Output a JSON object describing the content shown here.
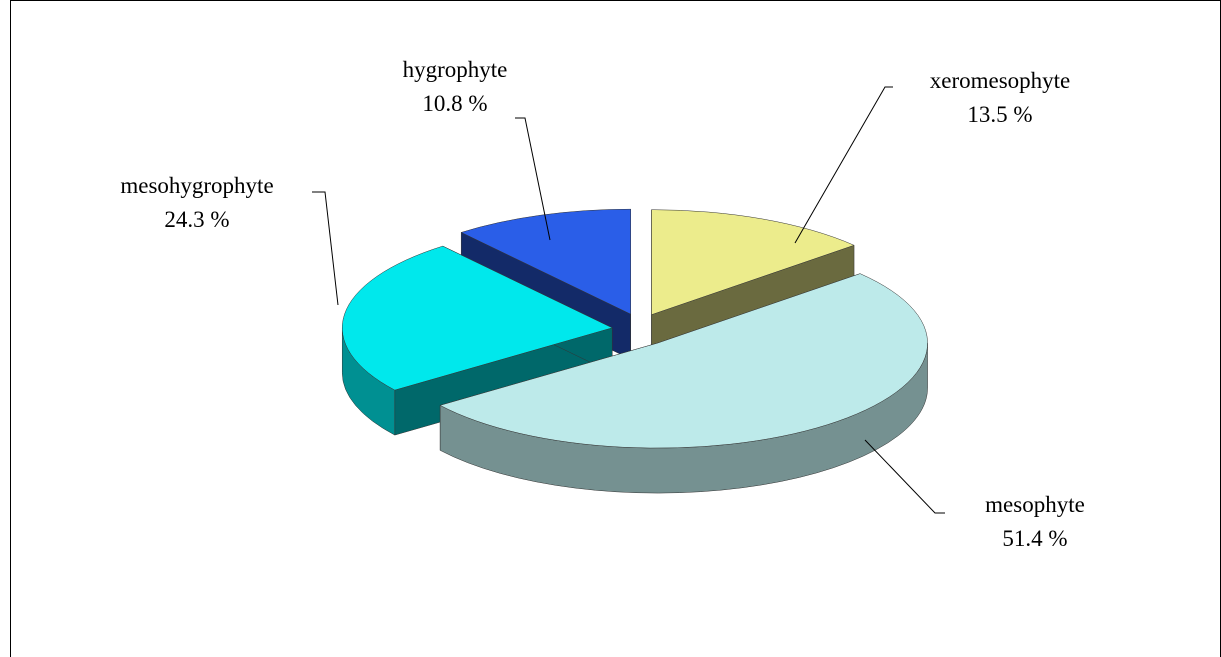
{
  "chart_data": {
    "type": "pie3d",
    "categories": [
      "xeromesophyte",
      "mesophyte",
      "mesohygrophyte",
      "hygrophyte"
    ],
    "values": [
      13.5,
      51.4,
      24.3,
      10.8
    ],
    "value_labels": [
      "13.5 %",
      "51.4 %",
      "24.3 %",
      "10.8 %"
    ],
    "colors": [
      "#ecec8c",
      "#bdeaea",
      "#00e8ec",
      "#2a5ee8"
    ]
  }
}
